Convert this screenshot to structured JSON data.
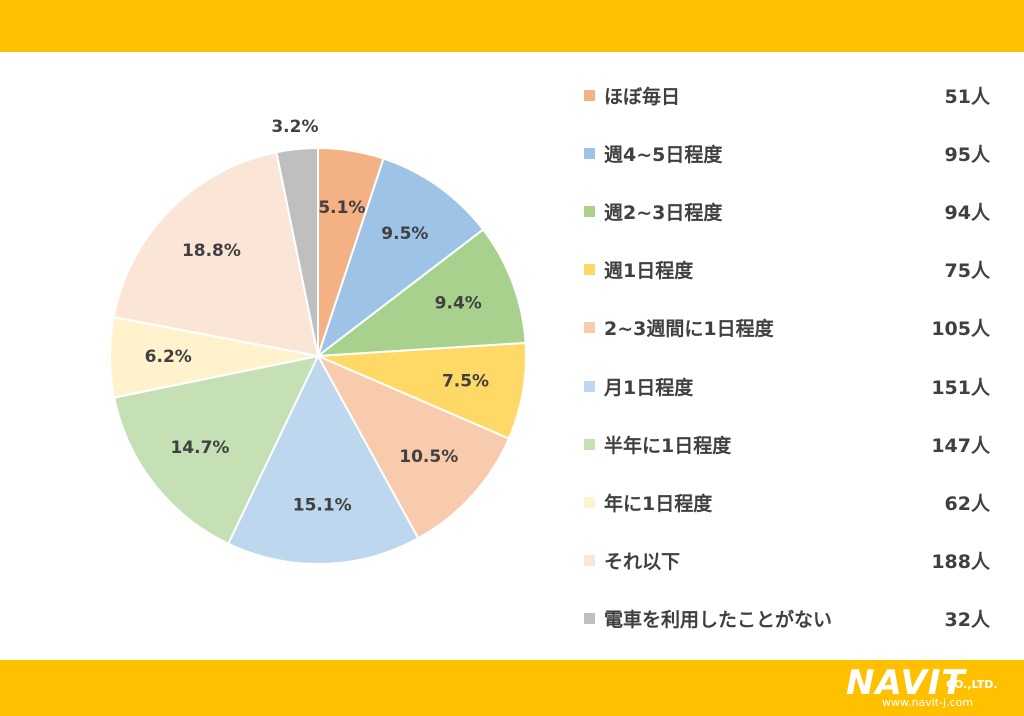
{
  "colors": {
    "band": "#FFC000",
    "slice_border": "#ffffff",
    "text": "#404040"
  },
  "chart_data": {
    "type": "pie",
    "start": "top",
    "direction": "clockwise",
    "categories": [
      "ほぼ毎日",
      "週4~5日程度",
      "週2~3日程度",
      "週1日程度",
      "2~3週間に1日程度",
      "月1日程度",
      "半年に1日程度",
      "年に1日程度",
      "それ以下",
      "電車を利用したことがない"
    ],
    "values": [
      51,
      95,
      94,
      75,
      105,
      151,
      147,
      62,
      188,
      32
    ],
    "unit": "人",
    "percent_labels": [
      "5.1%",
      "9.5%",
      "9.4%",
      "7.5%",
      "10.5%",
      "15.1%",
      "14.7%",
      "6.2%",
      "18.8%",
      "3.2%"
    ],
    "colors": [
      "#F4B183",
      "#9DC3E6",
      "#A9D18E",
      "#FFD966",
      "#F8CBAD",
      "#BDD7EE",
      "#C5E0B4",
      "#FFF2CC",
      "#FBE5D6",
      "#BFBFBF"
    ],
    "legend_position": "right"
  },
  "legend": {
    "counts": [
      "51人",
      "95人",
      "94人",
      "75人",
      "105人",
      "151人",
      "147人",
      "62人",
      "188人",
      "32人"
    ]
  },
  "logo": {
    "mark": "NAVIT",
    "company_suffix": "CO.,LTD.",
    "url": "www.navit-j.com"
  }
}
